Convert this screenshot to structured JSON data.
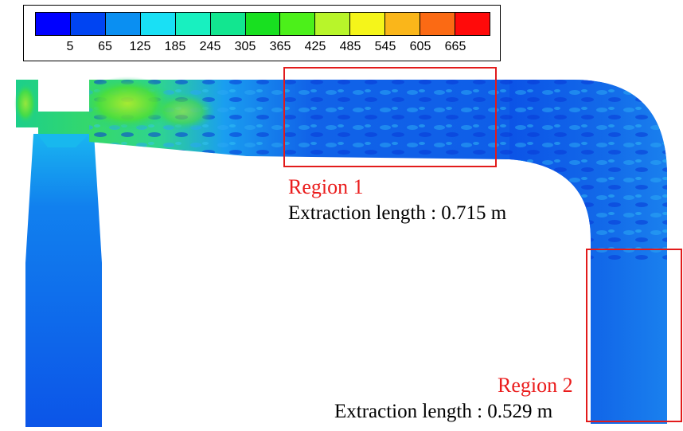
{
  "legend": {
    "colors": [
      "#0000ff",
      "#0044f2",
      "#0a8ff2",
      "#19e0f5",
      "#18f0c0",
      "#12e690",
      "#18e020",
      "#4cf01a",
      "#b8f52a",
      "#f5f51a",
      "#fab61a",
      "#fb6a14",
      "#ff0a0a"
    ],
    "ticks": [
      "5",
      "65",
      "125",
      "185",
      "245",
      "305",
      "365",
      "425",
      "485",
      "545",
      "605",
      "665"
    ]
  },
  "regions": [
    {
      "label": "Region 1",
      "length_text": "Extraction length : 0.715 m"
    },
    {
      "label": "Region 2",
      "length_text": "Extraction length : 0.529 m"
    }
  ],
  "colors": {
    "field_low": "#0a4fe6",
    "field_mid": "#1f8ff0",
    "field_green": "#22d86a",
    "field_yellow": "#a8ea2e",
    "region_outline": "#e21b1b",
    "region_text": "#ea1c1c"
  }
}
